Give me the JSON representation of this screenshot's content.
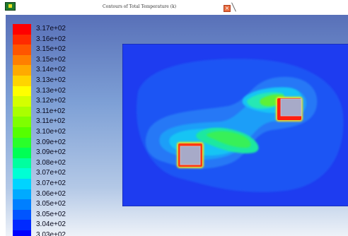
{
  "window": {
    "title": "Contours of Total Temperature (k)",
    "app_icon": "fluent-app-icon",
    "close_icon": "close-icon"
  },
  "legend": {
    "labels": [
      "3.17e+02",
      "3.16e+02",
      "3.15e+02",
      "3.15e+02",
      "3.14e+02",
      "3.13e+02",
      "3.13e+02",
      "3.12e+02",
      "3.11e+02",
      "3.11e+02",
      "3.10e+02",
      "3.09e+02",
      "3.09e+02",
      "3.08e+02",
      "3.07e+02",
      "3.07e+02",
      "3.06e+02",
      "3.05e+02",
      "3.05e+02",
      "3.04e+02",
      "3.03e+02"
    ],
    "colors": [
      "#ff0000",
      "#ff2a00",
      "#ff5500",
      "#ff7f00",
      "#ffaa00",
      "#ffd400",
      "#ffff00",
      "#d4ff00",
      "#aaff00",
      "#7fff00",
      "#55ff00",
      "#2aff2a",
      "#00ff55",
      "#00ff9f",
      "#00ffd4",
      "#00d4ff",
      "#00aaff",
      "#007fff",
      "#0055ff",
      "#002aff",
      "#0000ff"
    ]
  },
  "colors": {
    "background_top": "#5870b8",
    "background_bottom": "#eef2f8",
    "domain_base": "#1e3cf0"
  }
}
